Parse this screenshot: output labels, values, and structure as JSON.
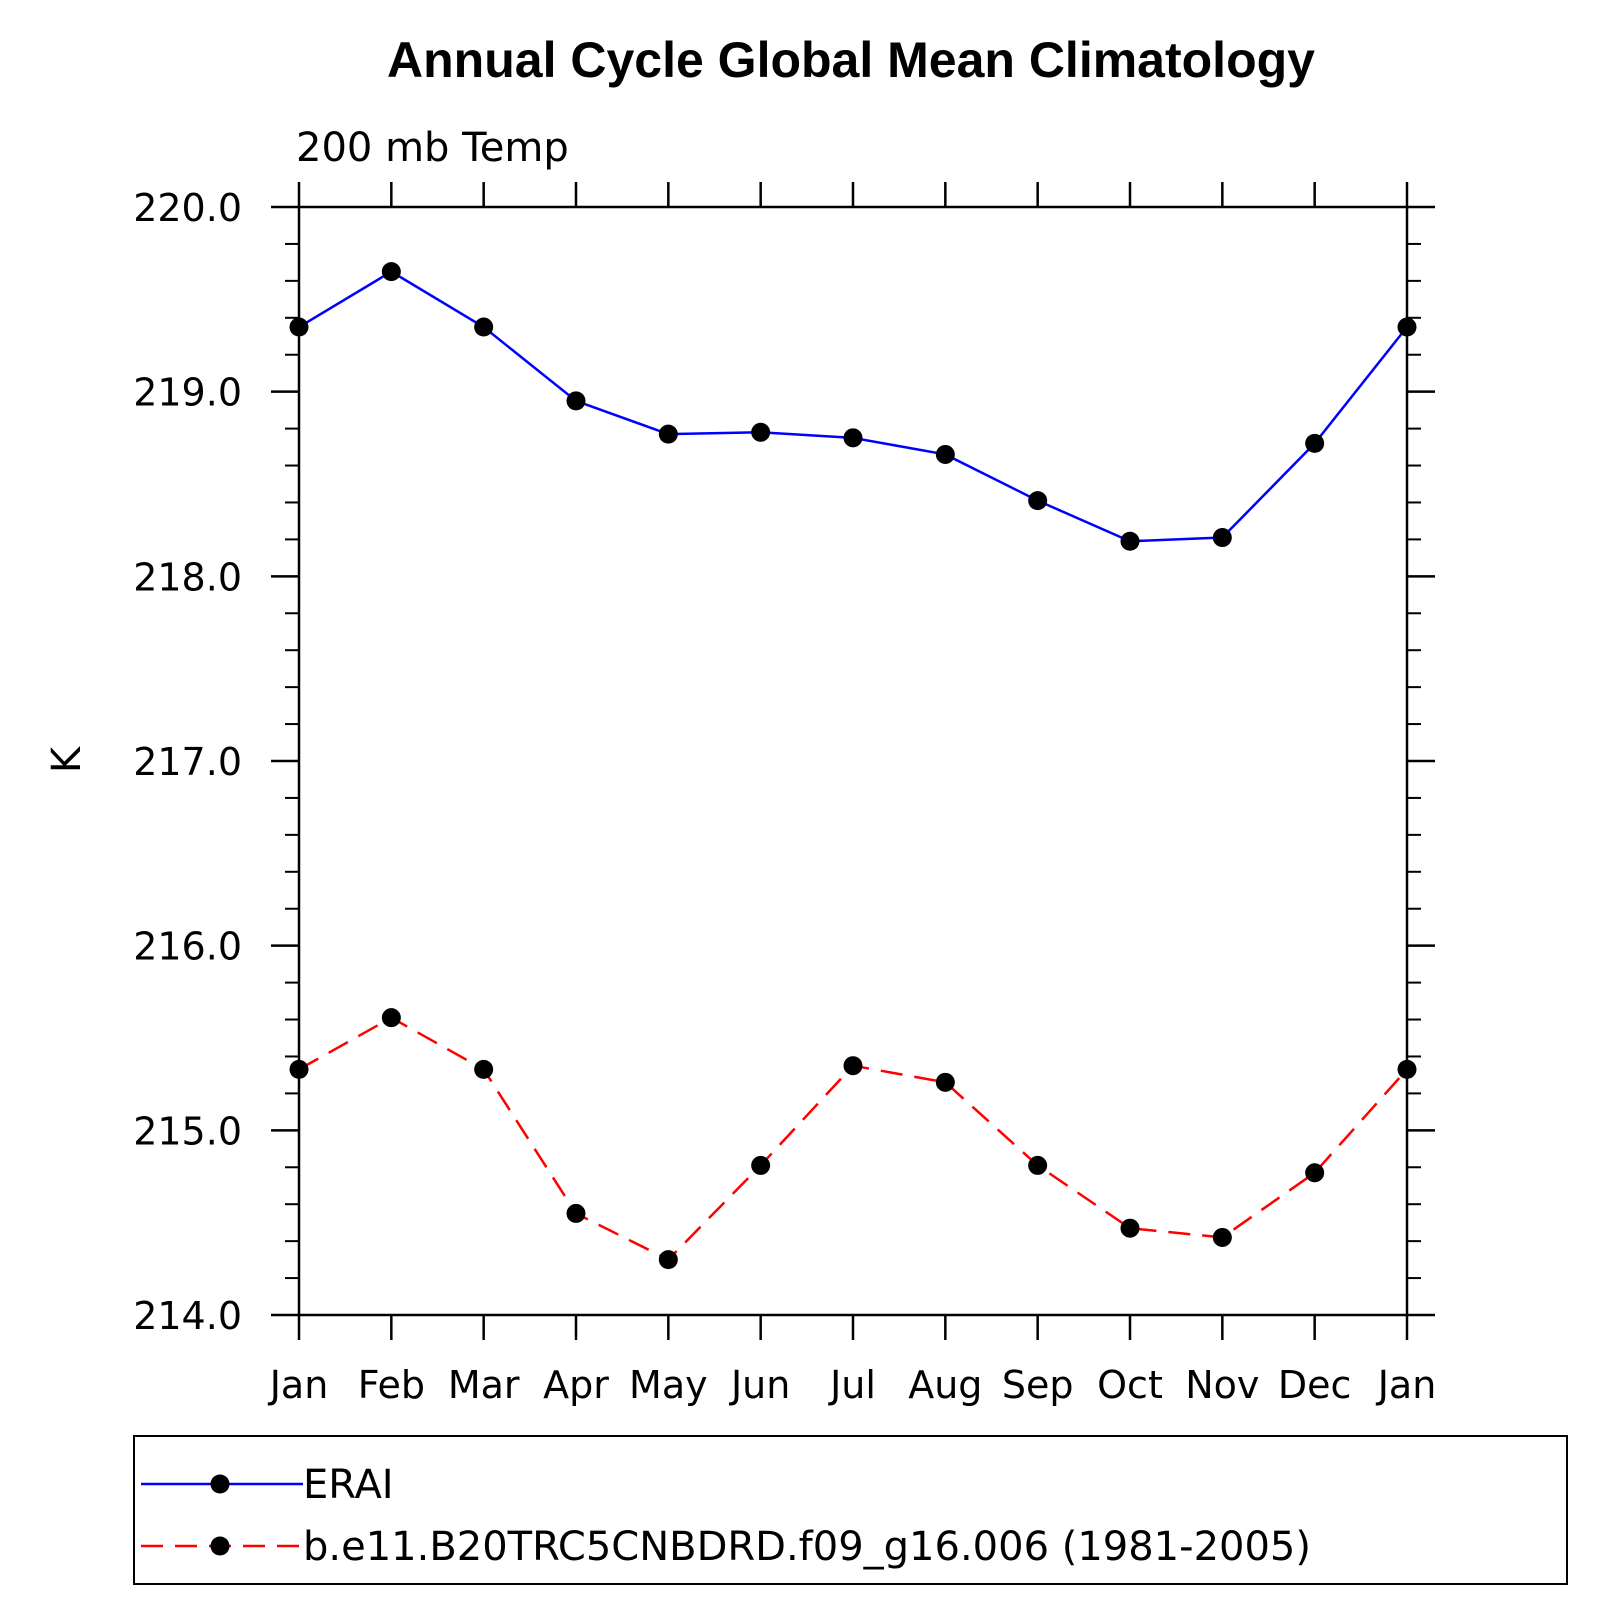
{
  "chart_data": {
    "type": "line",
    "title": "Annual Cycle Global Mean Climatology",
    "subtitle": "200 mb Temp",
    "xlabel": "",
    "ylabel": "K",
    "categories": [
      "Jan",
      "Feb",
      "Mar",
      "Apr",
      "May",
      "Jun",
      "Jul",
      "Aug",
      "Sep",
      "Oct",
      "Nov",
      "Dec",
      "Jan"
    ],
    "ylim": [
      214.0,
      220.0
    ],
    "yticks": [
      "214.0",
      "215.0",
      "216.0",
      "217.0",
      "218.0",
      "219.0",
      "220.0"
    ],
    "ytick_values": [
      214,
      215,
      216,
      217,
      218,
      219,
      220
    ],
    "y_minor_step": 0.2,
    "grid": false,
    "legend_position": "bottom",
    "series": [
      {
        "name": "ERAI",
        "color": "#0000ff",
        "line_style": "solid",
        "marker": "circle",
        "values": [
          219.35,
          219.65,
          219.35,
          218.95,
          218.77,
          218.78,
          218.75,
          218.66,
          218.41,
          218.19,
          218.21,
          218.72,
          219.35
        ]
      },
      {
        "name": "b.e11.B20TRC5CNBDRD.f09_g16.006 (1981-2005)",
        "color": "#ff0000",
        "line_style": "dashed",
        "marker": "circle",
        "values": [
          215.33,
          215.61,
          215.33,
          214.55,
          214.3,
          214.81,
          215.35,
          215.26,
          214.81,
          214.47,
          214.42,
          214.77,
          215.33
        ]
      }
    ]
  }
}
